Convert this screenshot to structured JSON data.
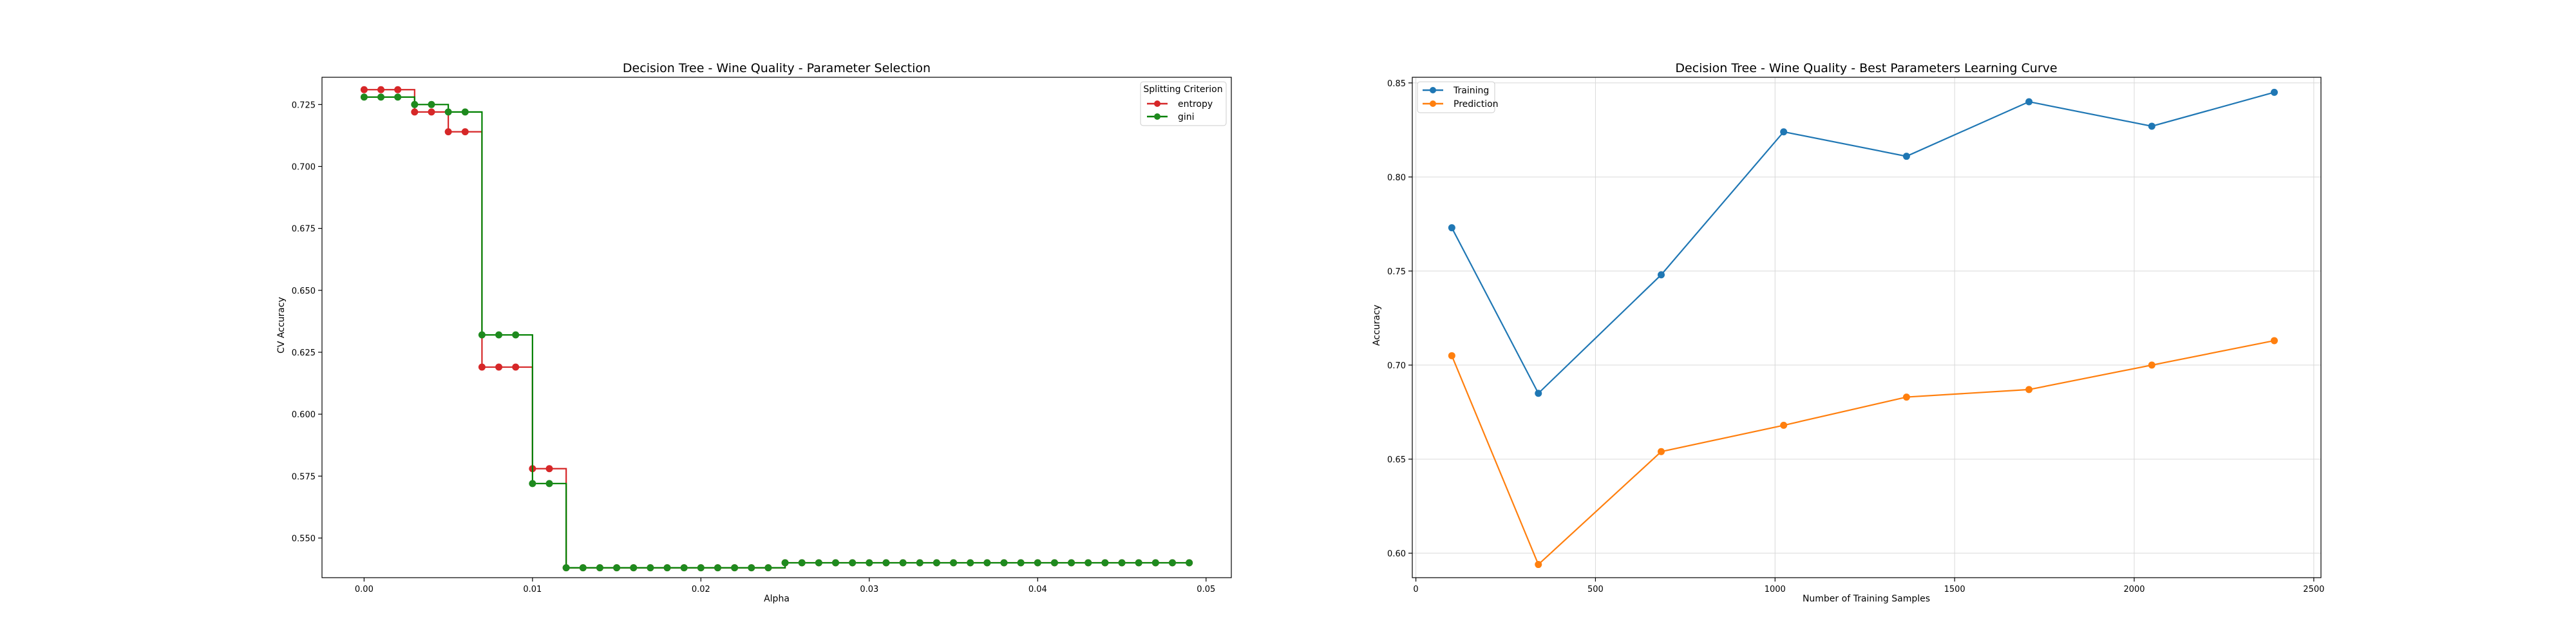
{
  "colors": {
    "entropy": "#d62728",
    "gini": "#1e8a1e",
    "gini_line": "#008000",
    "training": "#1f77b4",
    "prediction": "#ff7f0e",
    "axes": "#000000",
    "grid": "#d9d9d9"
  },
  "chart_data": [
    {
      "type": "line",
      "title": "Decision Tree - Wine Quality - Parameter Selection",
      "xlabel": "Alpha",
      "ylabel": "CV Accuracy",
      "xlim": [
        -0.0025,
        0.0515
      ],
      "ylim": [
        0.534,
        0.736
      ],
      "xticks": [
        0.0,
        0.01,
        0.02,
        0.03,
        0.04,
        0.05
      ],
      "xtick_labels": [
        "0.00",
        "0.01",
        "0.02",
        "0.03",
        "0.04",
        "0.05"
      ],
      "yticks": [
        0.55,
        0.575,
        0.6,
        0.625,
        0.65,
        0.675,
        0.7,
        0.725
      ],
      "ytick_labels": [
        "0.550",
        "0.575",
        "0.600",
        "0.625",
        "0.650",
        "0.675",
        "0.700",
        "0.725"
      ],
      "grid": false,
      "legend": {
        "title": "Splitting Criterion",
        "position": "top-right"
      },
      "x": [
        0.0,
        0.001,
        0.002,
        0.003,
        0.004,
        0.005,
        0.006,
        0.007,
        0.008,
        0.009,
        0.01,
        0.011,
        0.012,
        0.013,
        0.014,
        0.015,
        0.016,
        0.017,
        0.018,
        0.019,
        0.02,
        0.021,
        0.022,
        0.023,
        0.024,
        0.025,
        0.026,
        0.027,
        0.028,
        0.029,
        0.03,
        0.031,
        0.032,
        0.033,
        0.034,
        0.035,
        0.036,
        0.037,
        0.038,
        0.039,
        0.04,
        0.041,
        0.042,
        0.043,
        0.044,
        0.045,
        0.046,
        0.047,
        0.048,
        0.049
      ],
      "series": [
        {
          "name": "entropy",
          "values": [
            0.731,
            0.731,
            0.731,
            0.722,
            0.722,
            0.714,
            0.714,
            0.619,
            0.619,
            0.619,
            0.578,
            0.578,
            0.538,
            0.538,
            0.538,
            0.538,
            0.538,
            0.538,
            0.538,
            0.538,
            0.538,
            0.538,
            0.538,
            0.538,
            0.538,
            0.54,
            0.54,
            0.54,
            0.54,
            0.54,
            0.54,
            0.54,
            0.54,
            0.54,
            0.54,
            0.54,
            0.54,
            0.54,
            0.54,
            0.54,
            0.54,
            0.54,
            0.54,
            0.54,
            0.54,
            0.54,
            0.54,
            0.54,
            0.54,
            0.54
          ]
        },
        {
          "name": "gini",
          "values": [
            0.728,
            0.728,
            0.728,
            0.725,
            0.725,
            0.722,
            0.722,
            0.632,
            0.632,
            0.632,
            0.572,
            0.572,
            0.538,
            0.538,
            0.538,
            0.538,
            0.538,
            0.538,
            0.538,
            0.538,
            0.538,
            0.538,
            0.538,
            0.538,
            0.538,
            0.54,
            0.54,
            0.54,
            0.54,
            0.54,
            0.54,
            0.54,
            0.54,
            0.54,
            0.54,
            0.54,
            0.54,
            0.54,
            0.54,
            0.54,
            0.54,
            0.54,
            0.54,
            0.54,
            0.54,
            0.54,
            0.54,
            0.54,
            0.54,
            0.54
          ]
        }
      ]
    },
    {
      "type": "line",
      "title": "Decision Tree - Wine Quality -  Best Parameters Learning Curve",
      "xlabel": "Number of Training Samples",
      "ylabel": "Accuracy",
      "xlim": [
        -10,
        2520
      ],
      "ylim": [
        0.587,
        0.853
      ],
      "xticks": [
        0,
        500,
        1000,
        1500,
        2000,
        2500
      ],
      "xtick_labels": [
        "0",
        "500",
        "1000",
        "1500",
        "2000",
        "2500"
      ],
      "yticks": [
        0.6,
        0.65,
        0.7,
        0.75,
        0.8,
        0.85
      ],
      "ytick_labels": [
        "0.60",
        "0.65",
        "0.70",
        "0.75",
        "0.80",
        "0.85"
      ],
      "grid": true,
      "legend": {
        "position": "top-left"
      },
      "x": [
        100,
        341,
        683,
        1024,
        1366,
        1707,
        2049,
        2390
      ],
      "series": [
        {
          "name": "Training",
          "values": [
            0.773,
            0.685,
            0.748,
            0.824,
            0.811,
            0.84,
            0.827,
            0.845
          ]
        },
        {
          "name": "Prediction",
          "values": [
            0.705,
            0.594,
            0.654,
            0.668,
            0.683,
            0.687,
            0.7,
            0.713
          ]
        }
      ]
    }
  ]
}
